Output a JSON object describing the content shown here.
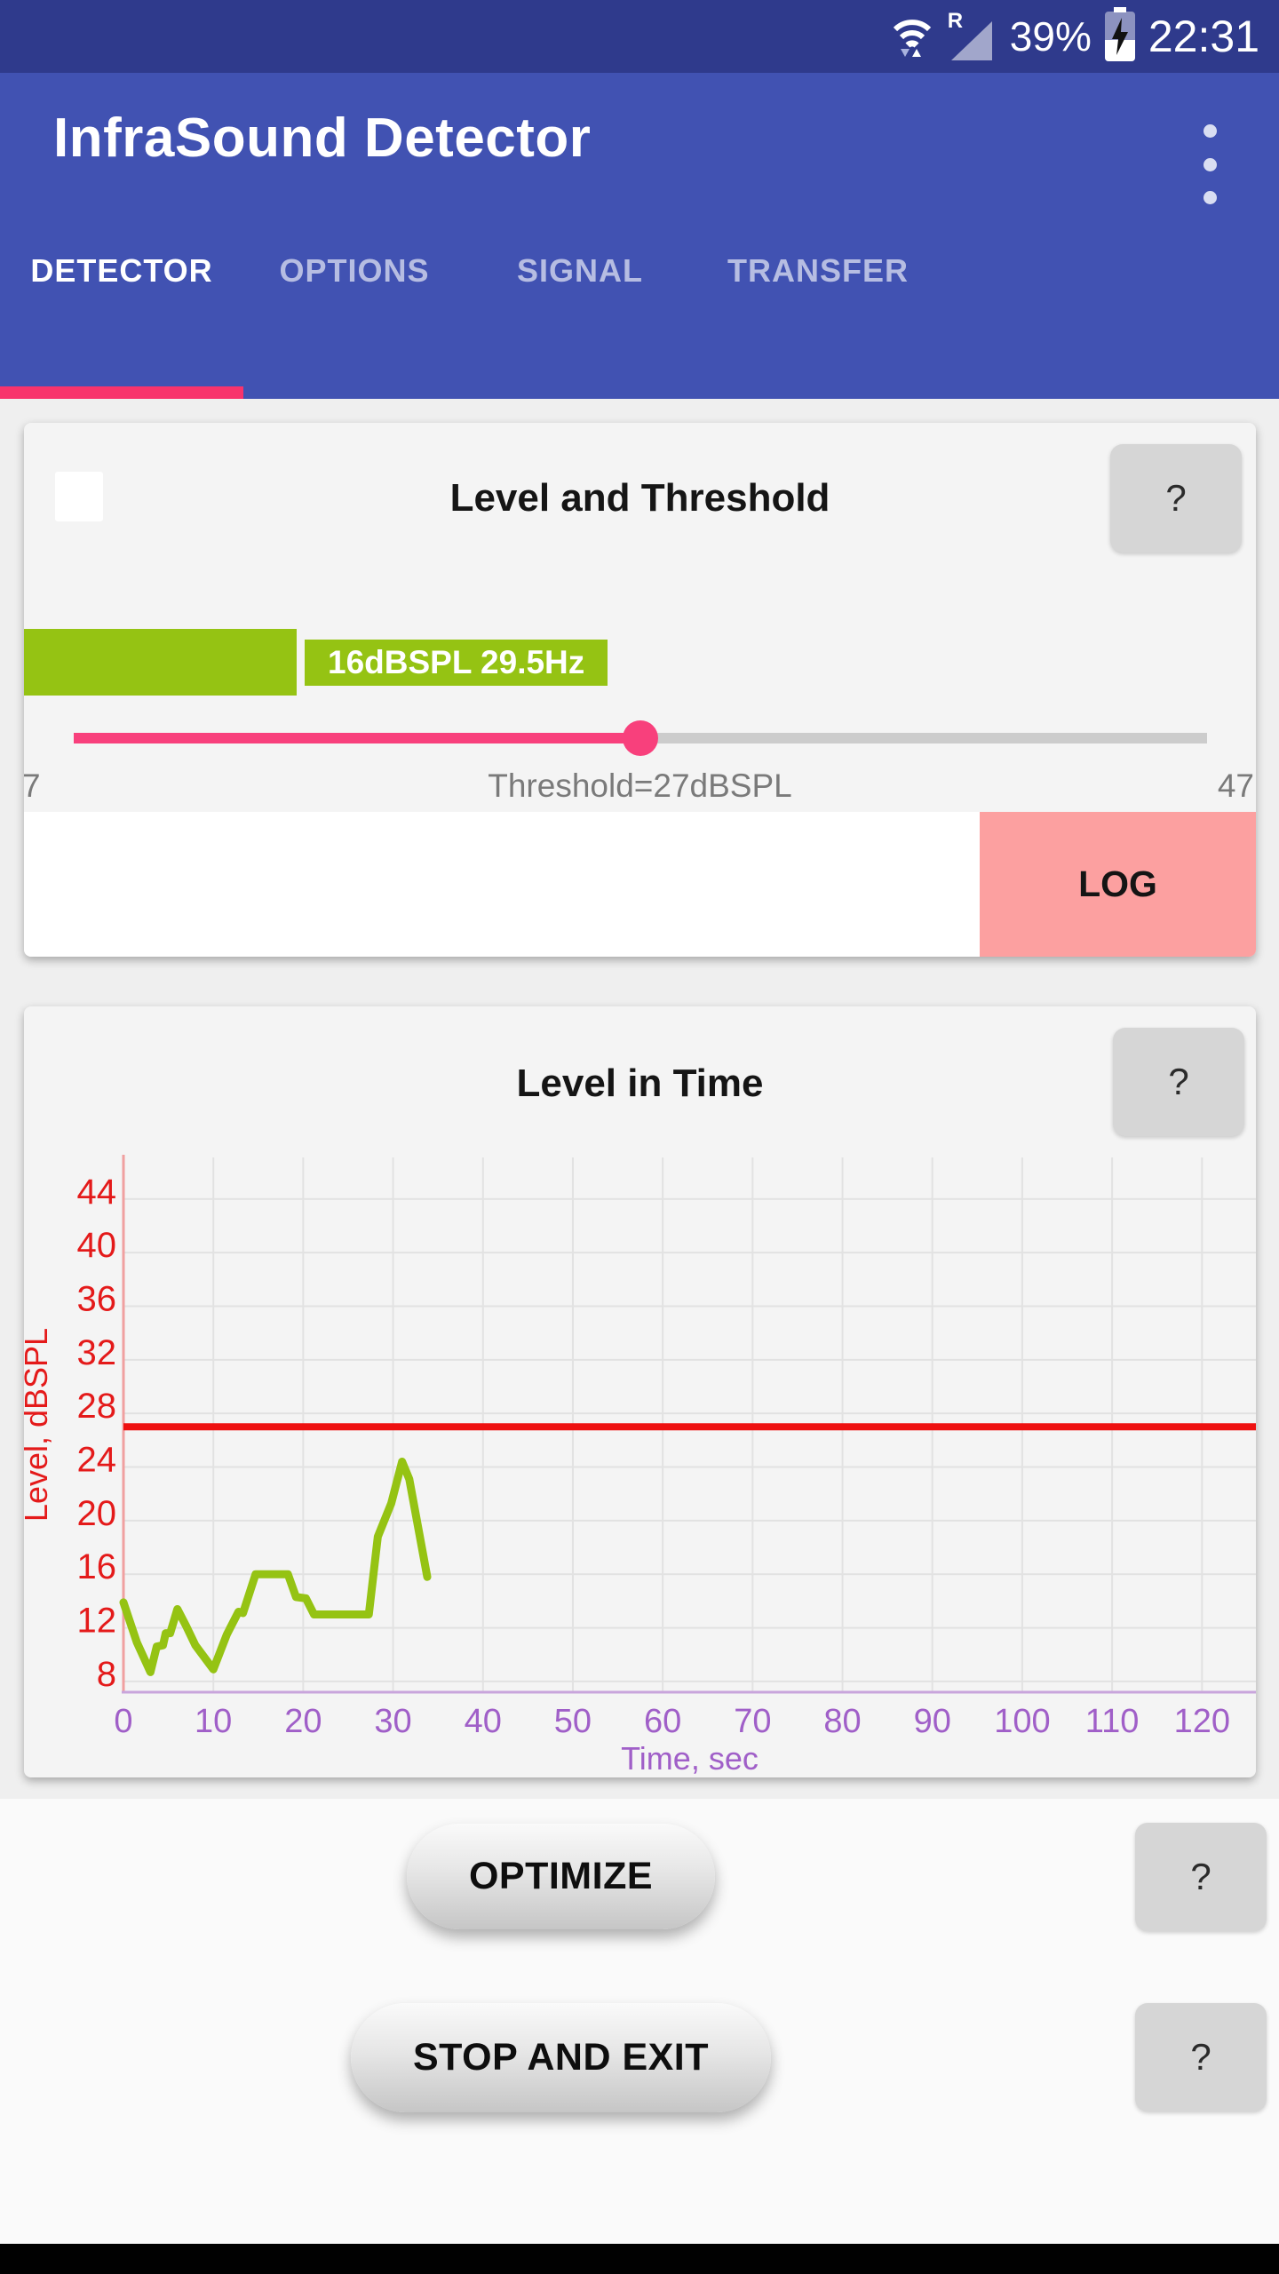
{
  "colors": {
    "statusbar": "#2F3A8C",
    "appbar": "#4152B2",
    "underlinePink": "#F8336C",
    "pink": "#F8407C",
    "green": "#95C313",
    "salmon": "#FCA0A0",
    "cardBg": "#F4F4F4",
    "contentBg": "#EFEFEF",
    "pageBg": "#FAFAFA",
    "sliderTrack": "#CCCCCC",
    "helpBg": "#D6D6D6"
  },
  "status_bar": {
    "battery_percent": "39%",
    "time": "22:31",
    "roaming_label": "R"
  },
  "app_bar": {
    "title": "InfraSound Detector"
  },
  "help_label": "?",
  "tabs": {
    "items": [
      {
        "label": "DETECTOR",
        "active": true
      },
      {
        "label": "OPTIONS",
        "active": false
      },
      {
        "label": "SIGNAL",
        "active": false
      },
      {
        "label": "TRANSFER",
        "active": false
      }
    ]
  },
  "level_card": {
    "title": "Level and Threshold",
    "checkbox_checked": false,
    "level_chip": "16dBSPL 29.5Hz",
    "slider": {
      "min": 7,
      "max": 47,
      "value": 27,
      "min_label": "7",
      "max_label": "47",
      "value_label": "Threshold=27dBSPL"
    },
    "log_button": "LOG"
  },
  "time_card": {
    "title": "Level in Time"
  },
  "chart_data": {
    "type": "line",
    "title": "Level in Time",
    "xlabel": "Time, sec",
    "ylabel": "Level, dBSPL",
    "xlim": [
      0,
      126
    ],
    "ylim": [
      7.2,
      47.1
    ],
    "x_ticks": [
      0,
      10,
      20,
      30,
      40,
      50,
      60,
      70,
      80,
      90,
      100,
      110,
      120
    ],
    "y_ticks": [
      8,
      12,
      16,
      20,
      24,
      28,
      32,
      36,
      40,
      44
    ],
    "grid": true,
    "threshold_value": 27,
    "series": [
      {
        "name": "level",
        "x": [
          0,
          1.5,
          3,
          3.7,
          4.4,
          4.7,
          5.2,
          6,
          7,
          8,
          10,
          11.5,
          12.8,
          13.3,
          14.7,
          18.3,
          19.2,
          20.3,
          21.2,
          22,
          27.3,
          28.3,
          29.8,
          31,
          31.8,
          33.8
        ],
        "y": [
          13.9,
          10.9,
          8.7,
          10.6,
          10.7,
          11.6,
          11.6,
          13.4,
          12.1,
          10.7,
          8.9,
          11.5,
          13.2,
          13.1,
          16.0,
          16.0,
          14.3,
          14.2,
          13.0,
          13.0,
          13.0,
          18.8,
          21.3,
          24.4,
          23.1,
          15.8
        ],
        "color": "#95C313"
      }
    ],
    "colors": {
      "threshold": "#EE1111",
      "y_label": "#E41A1A",
      "x_label": "#A05FC8",
      "y_axis": "#F0A0A0",
      "x_axis": "#C9A5DC",
      "grid": "#E2E2E2"
    }
  },
  "actions": {
    "optimize": "OPTIMIZE",
    "stop": "STOP AND EXIT"
  }
}
